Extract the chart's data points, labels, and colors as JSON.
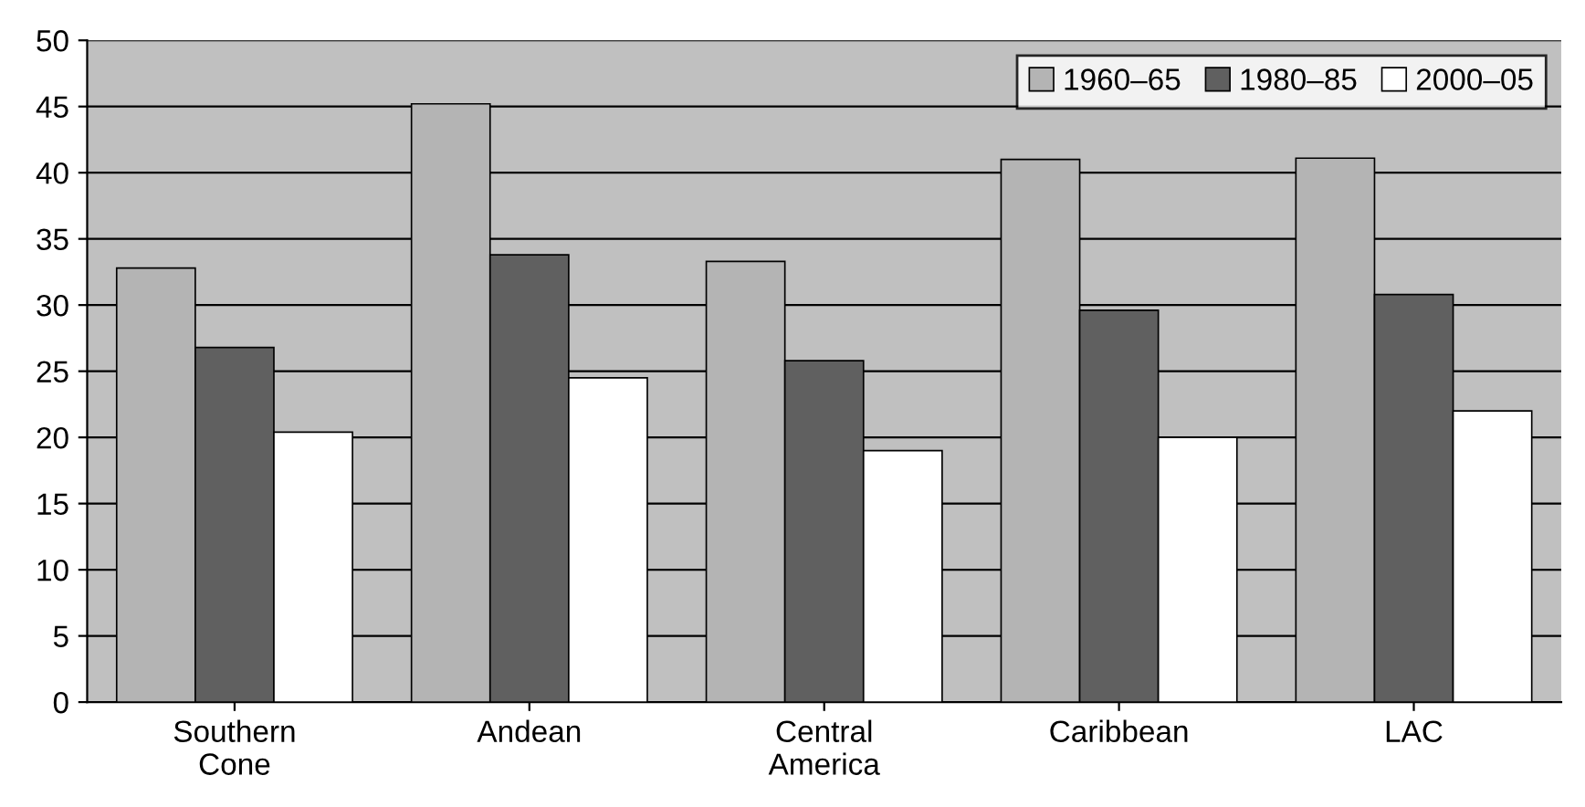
{
  "chart_data": {
    "type": "bar",
    "categories": [
      "Southern\nCone",
      "Andean",
      "Central\nAmerica",
      "Caribbean",
      "LAC"
    ],
    "series": [
      {
        "name": "1960–65",
        "color": "#b4b4b4",
        "values": [
          32.8,
          45.2,
          33.3,
          41.0,
          41.1
        ]
      },
      {
        "name": "1980–85",
        "color": "#606060",
        "values": [
          26.8,
          33.8,
          25.8,
          29.6,
          30.8
        ]
      },
      {
        "name": "2000–05",
        "color": "#ffffff",
        "values": [
          20.4,
          24.5,
          19.0,
          20.0,
          22.0
        ]
      }
    ],
    "ylim": [
      0,
      50
    ],
    "yticks": [
      0,
      5,
      10,
      15,
      20,
      25,
      30,
      35,
      40,
      45,
      50
    ],
    "grid": "y",
    "legend": "top right"
  }
}
